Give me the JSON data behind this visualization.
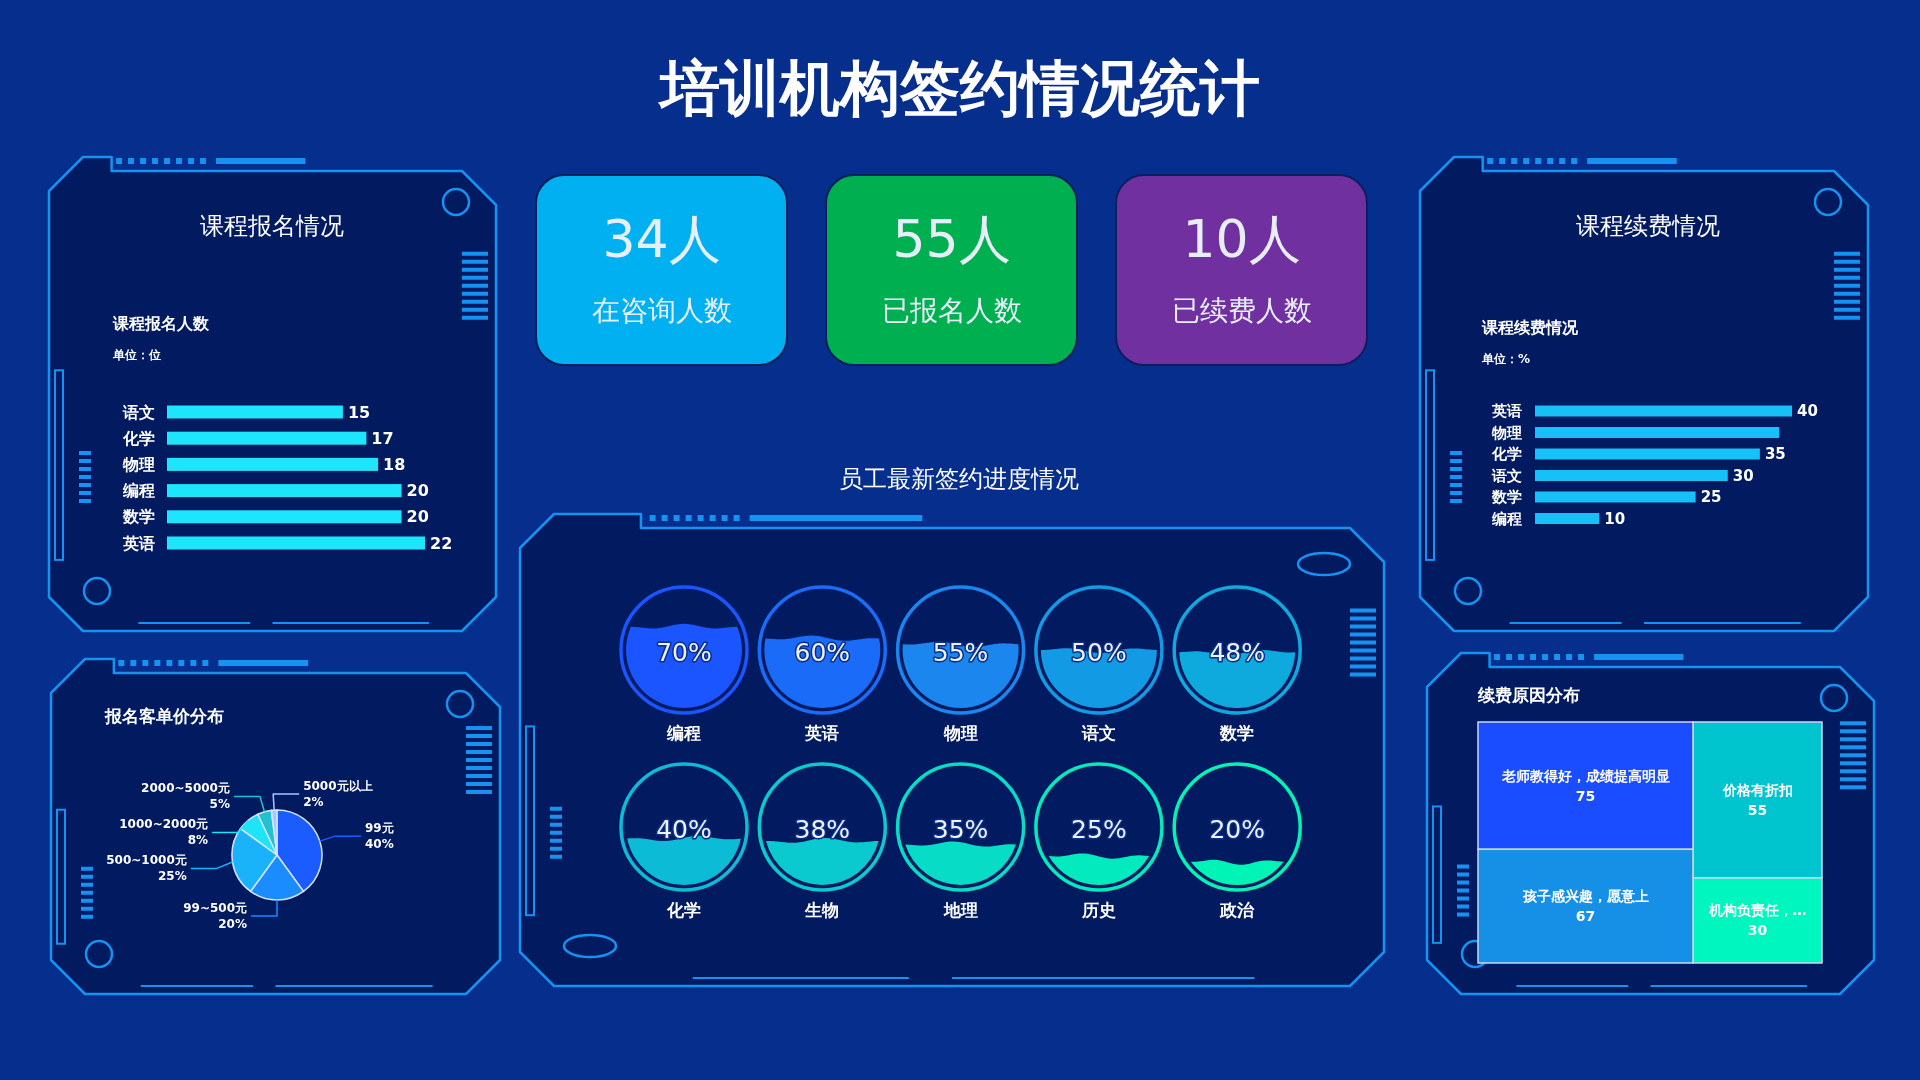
{
  "chart_data": [
    {
      "type": "bar",
      "orientation": "horizontal",
      "title": "课程报名情况",
      "subtitle": "课程报名人数",
      "annotations": [
        "单位：位"
      ],
      "categories": [
        "语文",
        "化学",
        "物理",
        "编程",
        "数学",
        "英语"
      ],
      "values": [
        15,
        17,
        18,
        20,
        20,
        22
      ],
      "color": "#1ee6fa",
      "data_labels": true
    },
    {
      "type": "other",
      "title": "培训机构签约情况统计",
      "categories": [
        "在咨询人数",
        "已报名人数",
        "已续费人数"
      ],
      "values": [
        34,
        55,
        10
      ],
      "value_labels": [
        "34人",
        "55人",
        "10人"
      ],
      "colors": [
        "#00b0f0",
        "#00b050",
        "#7030a0"
      ]
    },
    {
      "type": "bar",
      "orientation": "horizontal",
      "title": "课程续费情况",
      "subtitle": "课程续费情况",
      "annotations": [
        "单位：%"
      ],
      "categories": [
        "英语",
        "物理",
        "化学",
        "语文",
        "数学",
        "编程"
      ],
      "values": [
        40,
        38,
        35,
        30,
        25,
        10
      ],
      "value_labels": [
        "40",
        null,
        "35",
        "30",
        "25",
        "10"
      ],
      "color": "#18c0f8"
    },
    {
      "type": "pie",
      "title": "报名客单价分布",
      "categories": [
        "99元",
        "99~500元",
        "500~1000元",
        "1000~2000元",
        "2000~5000元",
        "5000元以上"
      ],
      "values": [
        40,
        20,
        25,
        8,
        5,
        2
      ],
      "value_labels": [
        "40%",
        "20%",
        "25%",
        "8%",
        "5%",
        "2%"
      ],
      "colors": [
        "#1a5cff",
        "#1a8cff",
        "#1ab2f8",
        "#1ee4f5",
        "#22c1cf",
        "#a8c8ff"
      ]
    },
    {
      "type": "other",
      "title": "员工最新签约进度情况",
      "categories": [
        "编程",
        "英语",
        "物理",
        "语文",
        "数学",
        "化学",
        "生物",
        "地理",
        "历史",
        "政治"
      ],
      "values": [
        70,
        60,
        55,
        50,
        48,
        40,
        38,
        35,
        25,
        20
      ],
      "value_labels": [
        "70%",
        "60%",
        "55%",
        "50%",
        "48%",
        "40%",
        "38%",
        "35%",
        "25%",
        "20%"
      ],
      "colors": [
        "#1a55ff",
        "#1a6cf8",
        "#1a86ee",
        "#129ae4",
        "#0eaade",
        "#0cbcd6",
        "#0acad0",
        "#06dcc6",
        "#02eabe",
        "#00f4b6"
      ]
    },
    {
      "type": "other",
      "title": "续费原因分布",
      "categories": [
        "老师教得好，成绩提高明显",
        "孩子感兴趣，愿意上",
        "价格有折扣",
        "机构负责任，…"
      ],
      "values": [
        75,
        67,
        55,
        30
      ],
      "data_labels": true,
      "colors": [
        "#1a4dff",
        "#1690e6",
        "#00c5cf",
        "#00f6bf"
      ]
    }
  ]
}
